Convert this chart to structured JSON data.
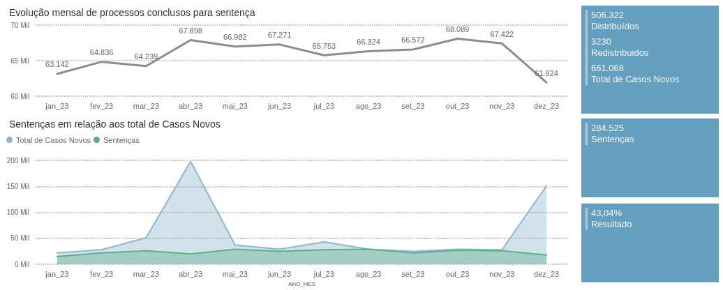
{
  "chart_data": [
    {
      "type": "line",
      "title": "Evolução mensal de processos conclusos para sentença",
      "categories": [
        "jan_23",
        "fev_23",
        "mar_23",
        "abr_23",
        "mai_23",
        "jun_23",
        "jul_23",
        "ago_23",
        "set_23",
        "out_23",
        "nov_23",
        "dez_23"
      ],
      "series": [
        {
          "color": "#8c8c8c",
          "values": [
            63.142,
            64.836,
            64.239,
            67.898,
            66.982,
            67.271,
            65.753,
            66.324,
            66.572,
            68.089,
            67.422,
            61.924
          ],
          "value_labels": [
            "63.142",
            "64.836",
            "64.239",
            "67.898",
            "66.982",
            "67.271",
            "65.753",
            "66.324",
            "66.572",
            "68.089",
            "67.422",
            "61.924"
          ]
        }
      ],
      "ylim": [
        60,
        70
      ],
      "yticks": [
        {
          "value": 60,
          "label": "60 Mil"
        },
        {
          "value": 65,
          "label": "65 Mil"
        },
        {
          "value": 70,
          "label": "70 Mil"
        }
      ],
      "grid": "y",
      "marker": "none",
      "line_style": "solid"
    },
    {
      "type": "area",
      "title": "Sentenças em relação aos total de Casos Novos",
      "xlabel": "ANO_MES",
      "categories": [
        "jan_23",
        "fev_23",
        "mar_23",
        "abr_23",
        "mai_23",
        "jun_23",
        "jul_23",
        "ago_23",
        "set_23",
        "out_23",
        "nov_23",
        "dez_23"
      ],
      "series": [
        {
          "name": "Total de Casos Novos",
          "color": "#8fb6cc",
          "values": [
            22,
            28,
            51,
            198,
            37,
            29,
            43,
            29,
            25,
            29,
            28,
            151
          ]
        },
        {
          "name": "Sentenças",
          "color": "#5fae8a",
          "values": [
            15,
            22,
            26,
            20,
            29,
            25,
            28,
            29,
            22,
            27,
            26,
            18
          ]
        }
      ],
      "ylim": [
        0,
        200
      ],
      "yticks": [
        {
          "value": 0,
          "label": "0 Mil"
        },
        {
          "value": 50,
          "label": "50 Mil"
        },
        {
          "value": 100,
          "label": "100 Mil"
        },
        {
          "value": 150,
          "label": "150 Mil"
        },
        {
          "value": 200,
          "label": "200 Mil"
        }
      ],
      "grid": "y",
      "legend": "top left",
      "marker": "none",
      "line_style": "solid"
    },
    {
      "type": "other",
      "annotations": [
        "506.322",
        "Distribuídos",
        "3230",
        "Redistribuidos",
        "661.068",
        "Total de Casos Novos"
      ]
    },
    {
      "type": "other",
      "annotations": [
        "284.525",
        "Sentenças"
      ]
    },
    {
      "type": "other",
      "annotations": [
        "43,04%",
        "Resultado"
      ]
    }
  ]
}
